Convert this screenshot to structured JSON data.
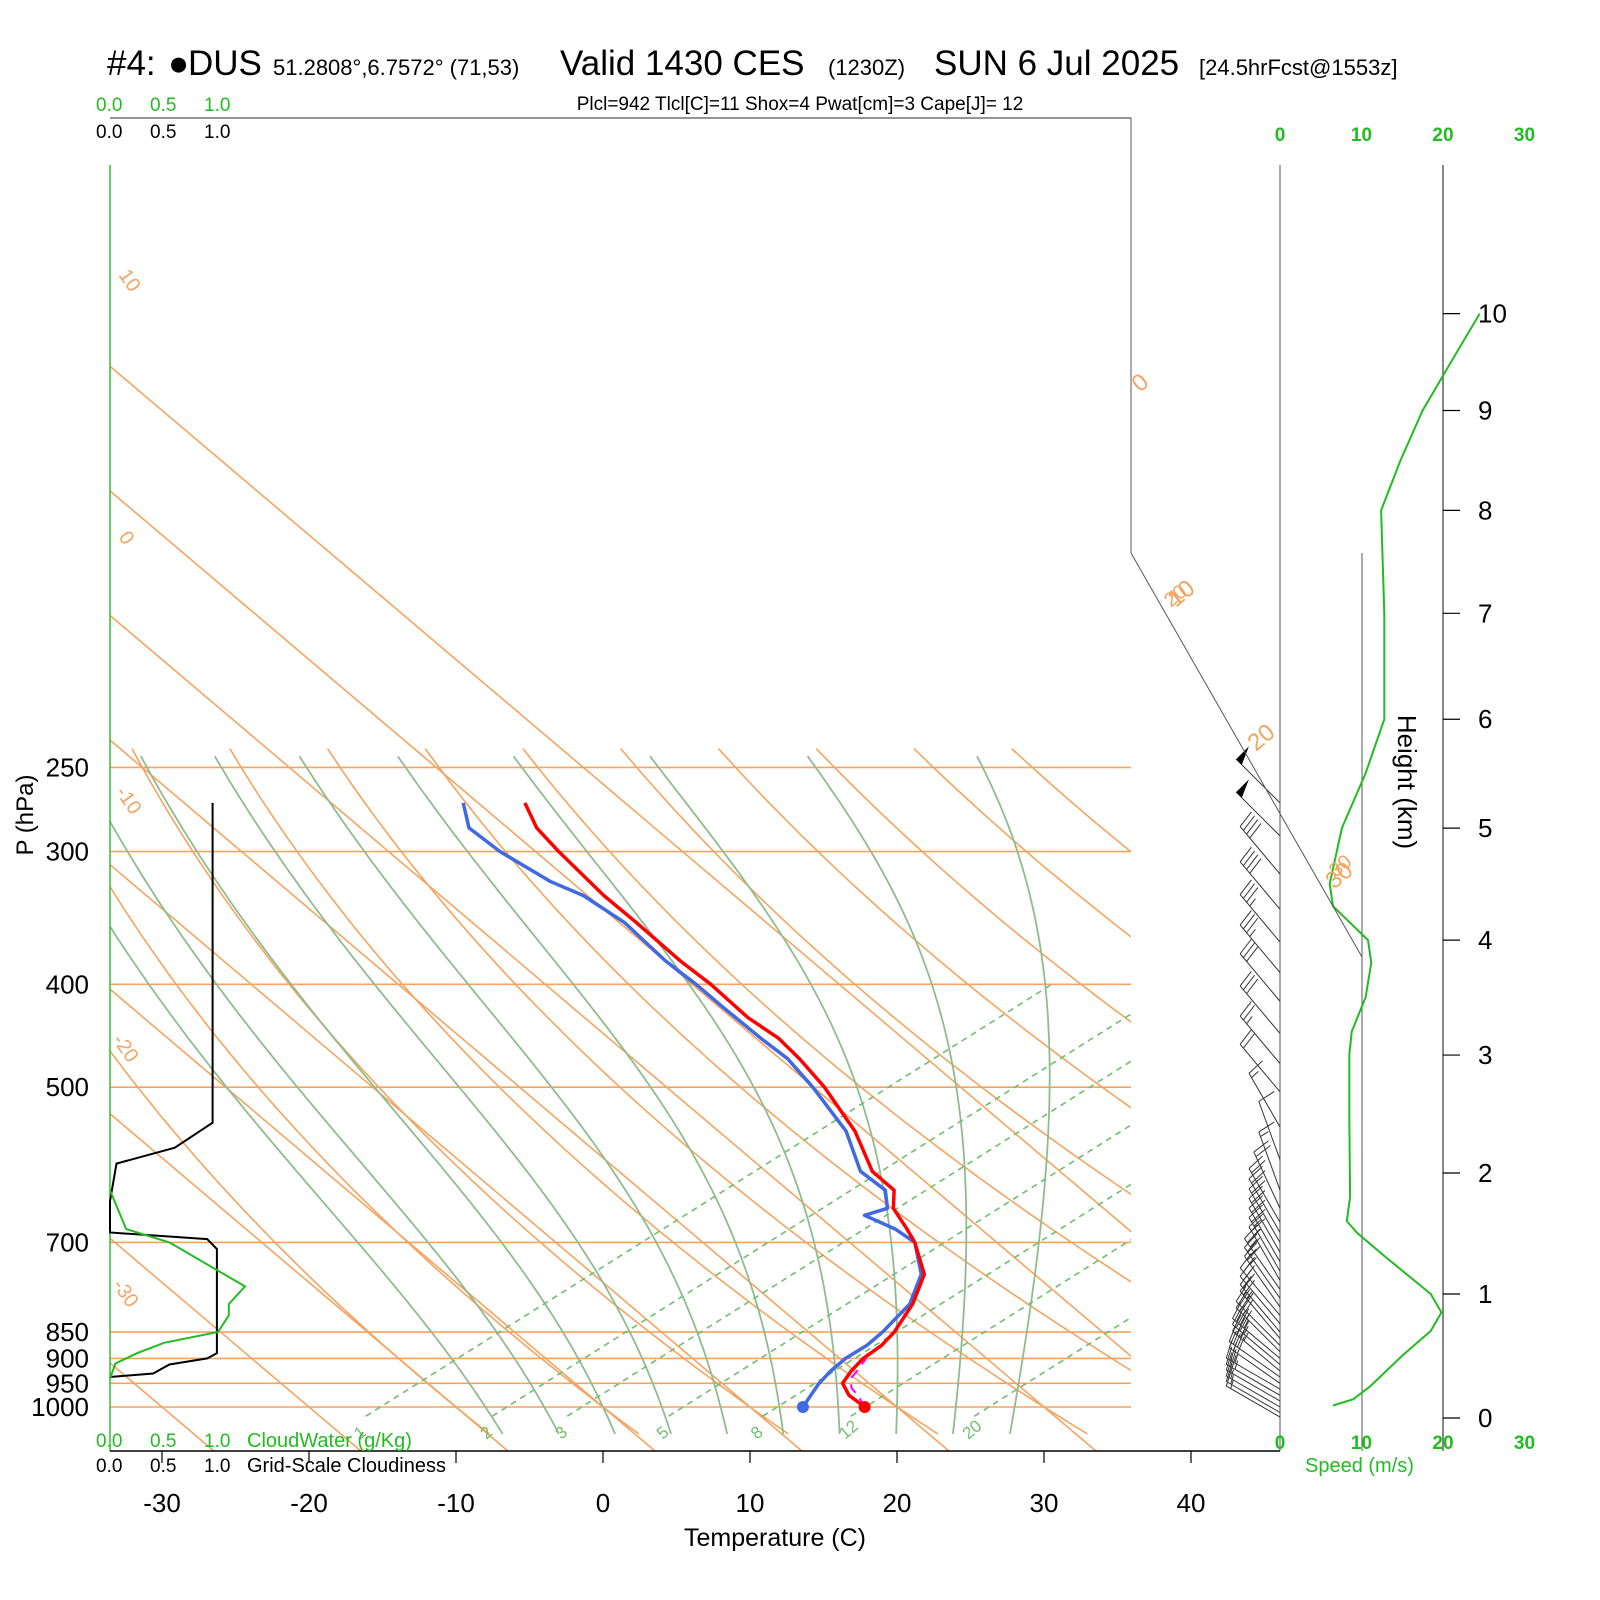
{
  "header": {
    "station_num": "#4:",
    "station_code": "DUS",
    "coords": "51.2808°,6.7572° (71,53)",
    "valid": "Valid 1430 CES",
    "zulu": "(1230Z)",
    "date": "SUN 6 Jul 2025",
    "forecast": "[24.5hrFcst@1553z]",
    "indices": "Plcl=942 Tlcl[C]=11 Shox=4 Pwat[cm]=3 Cape[J]= 12"
  },
  "colors": {
    "temperature": "#ff0000",
    "dewpoint": "#4169e1",
    "isobar": "#f4a460",
    "isotherm": "#f4a460",
    "dry_adiabat": "#f4a460",
    "moist_adiabat": "#8fbc8f",
    "mixing_ratio": "#6fbf6f",
    "cloud_water": "#22bb22",
    "cloudiness": "#000000",
    "wind_speed": "#22bb22",
    "parcel": "#ff00ff",
    "indices_text": "#a0522d"
  },
  "chart_data": {
    "type": "skew-t log-p sounding",
    "xlabel": "Temperature (C)",
    "ylabel": "P (hPa)",
    "right_label": "Height (km)",
    "xticks": [
      -30,
      -20,
      -10,
      0,
      10,
      20,
      30,
      40
    ],
    "pressure_ticks": [
      250,
      300,
      400,
      500,
      700,
      850,
      900,
      950,
      1000
    ],
    "height_ticks_km": [
      0,
      1,
      2,
      3,
      4,
      5,
      6,
      7,
      8,
      9,
      10
    ],
    "isotherm_labels": [
      {
        "t": -30,
        "text": "-30"
      },
      {
        "t": -20,
        "text": "-20"
      },
      {
        "t": -10,
        "text": "-10"
      },
      {
        "t": 0,
        "text": "0"
      },
      {
        "t": 10,
        "text": "10"
      },
      {
        "t": 20,
        "text": "20"
      },
      {
        "t": 30,
        "text": "30"
      }
    ],
    "dry_adiabats_theta_c": [
      -10,
      0,
      10,
      20,
      30,
      40,
      50,
      60,
      70,
      80,
      90,
      100
    ],
    "moist_adiabats_tw_c": [
      -8,
      -4,
      0,
      4,
      8,
      12,
      16,
      20,
      24,
      28
    ],
    "mixing_ratio_labels": [
      "1",
      "2",
      "3",
      "5",
      "8",
      "12",
      "20"
    ],
    "mixing_ratio_base_temps_c": [
      -15.4,
      -6.8,
      -1.7,
      5.2,
      11.6,
      17.6,
      26
    ],
    "temperature": [
      {
        "p": 1000,
        "t": 17.8
      },
      {
        "p": 975,
        "t": 15.8
      },
      {
        "p": 950,
        "t": 14.4
      },
      {
        "p": 925,
        "t": 14.0
      },
      {
        "p": 900,
        "t": 13.8
      },
      {
        "p": 875,
        "t": 14.0
      },
      {
        "p": 850,
        "t": 13.8
      },
      {
        "p": 800,
        "t": 12.8
      },
      {
        "p": 750,
        "t": 11.2
      },
      {
        "p": 700,
        "t": 8.0
      },
      {
        "p": 680,
        "t": 6.4
      },
      {
        "p": 650,
        "t": 3.8
      },
      {
        "p": 625,
        "t": 2.4
      },
      {
        "p": 600,
        "t": -0.6
      },
      {
        "p": 550,
        "t": -5.0
      },
      {
        "p": 500,
        "t": -10.6
      },
      {
        "p": 470,
        "t": -14.6
      },
      {
        "p": 450,
        "t": -17.6
      },
      {
        "p": 430,
        "t": -21.4
      },
      {
        "p": 400,
        "t": -26.6
      },
      {
        "p": 380,
        "t": -30.6
      },
      {
        "p": 350,
        "t": -36.6
      },
      {
        "p": 330,
        "t": -41.0
      },
      {
        "p": 300,
        "t": -47.6
      },
      {
        "p": 285,
        "t": -51.0
      },
      {
        "p": 270,
        "t": -53.8
      }
    ],
    "dewpoint": [
      {
        "p": 1000,
        "t": 13.6
      },
      {
        "p": 975,
        "t": 13.2
      },
      {
        "p": 950,
        "t": 12.8
      },
      {
        "p": 925,
        "t": 12.6
      },
      {
        "p": 900,
        "t": 12.6
      },
      {
        "p": 875,
        "t": 13.0
      },
      {
        "p": 850,
        "t": 13.0
      },
      {
        "p": 800,
        "t": 12.6
      },
      {
        "p": 750,
        "t": 11.0
      },
      {
        "p": 700,
        "t": 8.0
      },
      {
        "p": 680,
        "t": 5.6
      },
      {
        "p": 660,
        "t": 2.4
      },
      {
        "p": 650,
        "t": 3.4
      },
      {
        "p": 625,
        "t": 1.8
      },
      {
        "p": 600,
        "t": -1.4
      },
      {
        "p": 550,
        "t": -5.6
      },
      {
        "p": 500,
        "t": -11.4
      },
      {
        "p": 470,
        "t": -15.4
      },
      {
        "p": 450,
        "t": -18.8
      },
      {
        "p": 420,
        "t": -24.0
      },
      {
        "p": 400,
        "t": -27.6
      },
      {
        "p": 380,
        "t": -31.6
      },
      {
        "p": 350,
        "t": -37.4
      },
      {
        "p": 330,
        "t": -42.4
      },
      {
        "p": 320,
        "t": -45.8
      },
      {
        "p": 300,
        "t": -51.6
      },
      {
        "p": 285,
        "t": -55.6
      },
      {
        "p": 270,
        "t": -58.0
      }
    ],
    "parcel": [
      {
        "p": 1000,
        "t": 17.8
      },
      {
        "p": 975,
        "t": 16.4
      },
      {
        "p": 960,
        "t": 15.4
      },
      {
        "p": 942,
        "t": 14.6
      },
      {
        "p": 925,
        "t": 14.4
      },
      {
        "p": 900,
        "t": 14.0
      }
    ],
    "surface_points": {
      "t": 17.8,
      "td": 13.6
    },
    "cloudiness": [
      {
        "p": 270,
        "v": 0.95
      },
      {
        "p": 540,
        "v": 0.95
      },
      {
        "p": 570,
        "v": 0.6
      },
      {
        "p": 590,
        "v": 0.06
      },
      {
        "p": 640,
        "v": 0.0
      },
      {
        "p": 685,
        "v": 0.0
      },
      {
        "p": 695,
        "v": 0.9
      },
      {
        "p": 710,
        "v": 0.99
      },
      {
        "p": 890,
        "v": 0.99
      },
      {
        "p": 900,
        "v": 0.9
      },
      {
        "p": 912,
        "v": 0.55
      },
      {
        "p": 930,
        "v": 0.4
      },
      {
        "p": 937,
        "v": 0.0
      }
    ],
    "cloud_water": [
      {
        "p": 625,
        "v": 0.0
      },
      {
        "p": 680,
        "v": 0.15
      },
      {
        "p": 700,
        "v": 0.55
      },
      {
        "p": 770,
        "v": 1.25
      },
      {
        "p": 800,
        "v": 1.1
      },
      {
        "p": 820,
        "v": 1.1
      },
      {
        "p": 850,
        "v": 1.0
      },
      {
        "p": 870,
        "v": 0.5
      },
      {
        "p": 890,
        "v": 0.25
      },
      {
        "p": 910,
        "v": 0.05
      },
      {
        "p": 940,
        "v": 0.0
      }
    ],
    "wind_speed_profile": [
      {
        "h": 0.1,
        "s": 6.5
      },
      {
        "h": 0.15,
        "s": 9
      },
      {
        "h": 0.25,
        "s": 11
      },
      {
        "h": 0.5,
        "s": 15
      },
      {
        "h": 0.7,
        "s": 18.5
      },
      {
        "h": 0.85,
        "s": 19.8
      },
      {
        "h": 1.0,
        "s": 18.5
      },
      {
        "h": 1.3,
        "s": 13
      },
      {
        "h": 1.5,
        "s": 9.5
      },
      {
        "h": 1.6,
        "s": 8.2
      },
      {
        "h": 1.8,
        "s": 8.6
      },
      {
        "h": 2.5,
        "s": 8.5
      },
      {
        "h": 3.0,
        "s": 8.5
      },
      {
        "h": 3.2,
        "s": 8.8
      },
      {
        "h": 3.5,
        "s": 10.5
      },
      {
        "h": 3.8,
        "s": 11.2
      },
      {
        "h": 4.0,
        "s": 10.8
      },
      {
        "h": 4.3,
        "s": 6.5
      },
      {
        "h": 4.5,
        "s": 6.1
      },
      {
        "h": 5.0,
        "s": 7.6
      },
      {
        "h": 5.5,
        "s": 10.5
      },
      {
        "h": 6.0,
        "s": 12.8
      },
      {
        "h": 7.0,
        "s": 12.8
      },
      {
        "h": 8.0,
        "s": 12.4
      },
      {
        "h": 8.5,
        "s": 14.8
      },
      {
        "h": 9.0,
        "s": 17.5
      },
      {
        "h": 9.5,
        "s": 21
      },
      {
        "h": 10.0,
        "s": 24.5
      }
    ],
    "wind_barbs": [
      {
        "p": 270,
        "dir": 315,
        "kt": 50
      },
      {
        "p": 290,
        "dir": 315,
        "kt": 50
      },
      {
        "p": 315,
        "dir": 320,
        "kt": 40
      },
      {
        "p": 340,
        "dir": 320,
        "kt": 40
      },
      {
        "p": 365,
        "dir": 320,
        "kt": 35
      },
      {
        "p": 390,
        "dir": 320,
        "kt": 35
      },
      {
        "p": 415,
        "dir": 320,
        "kt": 30
      },
      {
        "p": 445,
        "dir": 320,
        "kt": 30
      },
      {
        "p": 475,
        "dir": 320,
        "kt": 25
      },
      {
        "p": 505,
        "dir": 320,
        "kt": 20
      },
      {
        "p": 545,
        "dir": 330,
        "kt": 15
      },
      {
        "p": 585,
        "dir": 340,
        "kt": 10
      },
      {
        "p": 625,
        "dir": 340,
        "kt": 15
      },
      {
        "p": 650,
        "dir": 335,
        "kt": 20
      },
      {
        "p": 670,
        "dir": 330,
        "kt": 20
      },
      {
        "p": 685,
        "dir": 330,
        "kt": 20
      },
      {
        "p": 700,
        "dir": 330,
        "kt": 20
      },
      {
        "p": 715,
        "dir": 330,
        "kt": 20
      },
      {
        "p": 730,
        "dir": 330,
        "kt": 20
      },
      {
        "p": 745,
        "dir": 330,
        "kt": 25
      },
      {
        "p": 760,
        "dir": 330,
        "kt": 25
      },
      {
        "p": 775,
        "dir": 325,
        "kt": 25
      },
      {
        "p": 790,
        "dir": 325,
        "kt": 25
      },
      {
        "p": 805,
        "dir": 325,
        "kt": 25
      },
      {
        "p": 820,
        "dir": 320,
        "kt": 20
      },
      {
        "p": 835,
        "dir": 320,
        "kt": 20
      },
      {
        "p": 850,
        "dir": 320,
        "kt": 20
      },
      {
        "p": 862,
        "dir": 320,
        "kt": 25
      },
      {
        "p": 875,
        "dir": 315,
        "kt": 30
      },
      {
        "p": 887,
        "dir": 315,
        "kt": 35
      },
      {
        "p": 900,
        "dir": 310,
        "kt": 35
      },
      {
        "p": 912,
        "dir": 310,
        "kt": 35
      },
      {
        "p": 925,
        "dir": 310,
        "kt": 35
      },
      {
        "p": 937,
        "dir": 305,
        "kt": 30
      },
      {
        "p": 950,
        "dir": 305,
        "kt": 30
      },
      {
        "p": 962,
        "dir": 300,
        "kt": 25
      },
      {
        "p": 975,
        "dir": 300,
        "kt": 25
      },
      {
        "p": 987,
        "dir": 300,
        "kt": 20
      },
      {
        "p": 1000,
        "dir": 300,
        "kt": 15
      },
      {
        "p": 1012,
        "dir": 300,
        "kt": 15
      },
      {
        "p": 1022,
        "dir": 300,
        "kt": 15
      }
    ],
    "cloud_scale": {
      "top_green": [
        "0.0",
        "0.5",
        "1.0"
      ],
      "top_black": [
        "0.0",
        "0.5",
        "1.0"
      ],
      "bottom_green": [
        "0.0",
        "0.5",
        "1.0"
      ],
      "bottom_black": [
        "0.0",
        "0.5",
        "1.0"
      ],
      "cloudwater_label": "CloudWater (g/Kg)",
      "cloudiness_label": "Grid-Scale Cloudiness"
    },
    "speed_axis": {
      "ticks": [
        "0",
        "10",
        "20",
        "30"
      ],
      "label": "Speed (m/s)"
    }
  }
}
